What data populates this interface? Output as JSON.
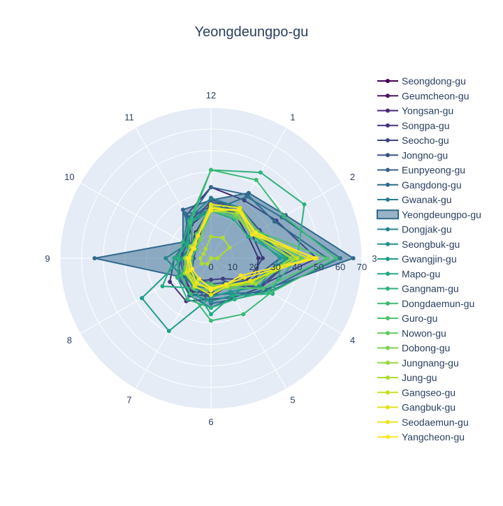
{
  "chart_data": {
    "type": "radar",
    "title": "Yeongdeungpo-gu",
    "categories": [
      "12",
      "1",
      "2",
      "3",
      "4",
      "5",
      "6",
      "7",
      "8",
      "9",
      "10",
      "11"
    ],
    "radial_range": [
      0,
      70
    ],
    "radial_ticks": [
      "0",
      "10",
      "20",
      "30",
      "40",
      "50",
      "60",
      "70"
    ],
    "highlight_series": "Yeongdeungpo-gu",
    "legend_position": "right",
    "series": [
      {
        "name": "Seongdong-gu",
        "color": "#440154",
        "values": [
          23,
          23,
          20,
          22,
          24,
          13,
          16,
          18,
          15,
          14,
          13,
          18
        ]
      },
      {
        "name": "Geumcheon-gu",
        "color": "#481467",
        "values": [
          24,
          24,
          22,
          24,
          20,
          11,
          10,
          12,
          12,
          12,
          11,
          14
        ]
      },
      {
        "name": "Yongsan-gu",
        "color": "#482576",
        "values": [
          33,
          31,
          35,
          49,
          26,
          15,
          17,
          20,
          14,
          12,
          8,
          23
        ]
      },
      {
        "name": "Songpa-gu",
        "color": "#46337e",
        "values": [
          26,
          27,
          26,
          38,
          27,
          21,
          19,
          23,
          22,
          17,
          14,
          20
        ]
      },
      {
        "name": "Seocho-gu",
        "color": "#404387",
        "values": [
          27,
          27,
          26,
          38,
          26,
          18,
          18,
          19,
          18,
          14,
          10,
          18
        ]
      },
      {
        "name": "Jongno-gu",
        "color": "#3b518b",
        "values": [
          28,
          24,
          22,
          32,
          21,
          13,
          12,
          11,
          10,
          8,
          8,
          11
        ]
      },
      {
        "name": "Eunpyeong-gu",
        "color": "#345f8d",
        "values": [
          24,
          26,
          24,
          35,
          24,
          15,
          18,
          15,
          14,
          13,
          14,
          22
        ]
      },
      {
        "name": "Gangdong-gu",
        "color": "#2d6c8e",
        "values": [
          33,
          34,
          34,
          54,
          30,
          22,
          21,
          15,
          15,
          14,
          15,
          21
        ]
      },
      {
        "name": "Gwanak-gu",
        "color": "#287a8e",
        "values": [
          22,
          33,
          38,
          60,
          31,
          19,
          17,
          16,
          14,
          12,
          11,
          24
        ]
      },
      {
        "name": "Yeongdeungpo-gu",
        "color": "#31688e",
        "fill": true,
        "values": [
          27,
          35,
          40,
          66,
          29,
          21,
          23,
          20,
          17,
          54,
          15,
          26
        ]
      },
      {
        "name": "Dongjak-gu",
        "color": "#25848e",
        "values": [
          28,
          27,
          25,
          35,
          23,
          15,
          14,
          15,
          16,
          21,
          13,
          21
        ]
      },
      {
        "name": "Seongbuk-gu",
        "color": "#21918c",
        "values": [
          23,
          24,
          22,
          36,
          22,
          20,
          20,
          19,
          16,
          16,
          13,
          19
        ]
      },
      {
        "name": "Gwangjin-gu",
        "color": "#1f9d89",
        "values": [
          23,
          23,
          22,
          32,
          26,
          18,
          18,
          39,
          37,
          13,
          12,
          20
        ]
      },
      {
        "name": "Mapo-gu",
        "color": "#23a983",
        "values": [
          22,
          21,
          20,
          34,
          33,
          20,
          26,
          16,
          26,
          17,
          13,
          19
        ]
      },
      {
        "name": "Gangnam-gu",
        "color": "#2db27d",
        "values": [
          41,
          46,
          50,
          40,
          31,
          22,
          23,
          22,
          18,
          15,
          15,
          20
        ]
      },
      {
        "name": "Dongdaemun-gu",
        "color": "#3bbb75",
        "values": [
          41,
          42,
          39,
          58,
          32,
          30,
          29,
          19,
          16,
          11,
          9,
          19
        ]
      },
      {
        "name": "Guro-gu",
        "color": "#4ec36b",
        "values": [
          22,
          22,
          25,
          54,
          28,
          16,
          12,
          12,
          10,
          9,
          8,
          10
        ]
      },
      {
        "name": "Nowon-gu",
        "color": "#63cb5f",
        "values": [
          25,
          27,
          25,
          42,
          23,
          16,
          15,
          16,
          12,
          11,
          10,
          13
        ]
      },
      {
        "name": "Dobong-gu",
        "color": "#7ad151",
        "values": [
          24,
          23,
          22,
          38,
          22,
          14,
          13,
          14,
          14,
          10,
          9,
          10
        ]
      },
      {
        "name": "Jungnang-gu",
        "color": "#93d741",
        "values": [
          22,
          24,
          22,
          37,
          24,
          15,
          17,
          15,
          14,
          12,
          11,
          12
        ]
      },
      {
        "name": "Jung-gu",
        "color": "#addc30",
        "values": [
          10,
          11,
          10,
          3,
          0,
          0,
          0,
          3,
          5,
          5,
          4,
          5
        ]
      },
      {
        "name": "Gangseo-gu",
        "color": "#c8e020",
        "values": [
          24,
          25,
          24,
          40,
          22,
          15,
          14,
          14,
          12,
          10,
          9,
          12
        ]
      },
      {
        "name": "Gangbuk-gu",
        "color": "#e1e31a",
        "values": [
          25,
          27,
          23,
          45,
          21,
          15,
          17,
          15,
          13,
          11,
          10,
          12
        ]
      },
      {
        "name": "Seodaemun-gu",
        "color": "#f0e51f",
        "values": [
          22,
          26,
          22,
          49,
          18,
          14,
          15,
          13,
          11,
          11,
          9,
          12
        ]
      },
      {
        "name": "Yangcheon-gu",
        "color": "#fde725",
        "values": [
          23,
          26,
          24,
          48,
          16,
          14,
          14,
          11,
          10,
          10,
          9,
          12
        ]
      }
    ]
  }
}
